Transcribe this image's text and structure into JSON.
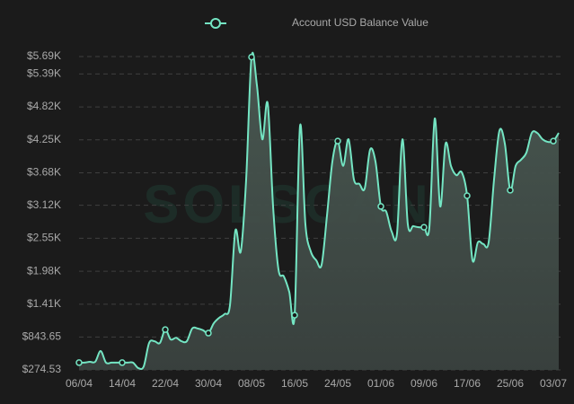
{
  "chart_data": {
    "type": "area",
    "legend": "Account USD Balance Value",
    "watermark": "SOLSCAN",
    "color": "#74e5c3",
    "fill": "#3b4742",
    "grid": true,
    "categories": [
      "06/04",
      null,
      null,
      null,
      null,
      null,
      null,
      null,
      "14/04",
      null,
      null,
      null,
      null,
      null,
      null,
      null,
      "22/04",
      null,
      null,
      null,
      null,
      null,
      null,
      null,
      "30/04",
      null,
      null,
      null,
      null,
      null,
      null,
      null,
      "08/05",
      null,
      null,
      null,
      null,
      null,
      null,
      null,
      "16/05",
      null,
      null,
      null,
      null,
      null,
      null,
      null,
      "24/05",
      null,
      null,
      null,
      null,
      null,
      null,
      null,
      "01/06",
      null,
      null,
      null,
      null,
      null,
      null,
      null,
      "09/06",
      null,
      null,
      null,
      null,
      null,
      null,
      null,
      "17/06",
      null,
      null,
      null,
      null,
      null,
      null,
      null,
      "25/06",
      null,
      null,
      null,
      null,
      null,
      null,
      null,
      "03/07",
      null
    ],
    "values": [
      400,
      400,
      415,
      415,
      600,
      400,
      400,
      400,
      400,
      400,
      400,
      305,
      335,
      740,
      770,
      740,
      970,
      800,
      830,
      770,
      770,
      990,
      990,
      960,
      910,
      1080,
      1175,
      1240,
      1390,
      2680,
      2320,
      3560,
      5680,
      5195,
      4260,
      4880,
      3100,
      2010,
      1890,
      1625,
      1220,
      4490,
      2790,
      2320,
      2170,
      2090,
      2940,
      3875,
      4230,
      3800,
      4260,
      3565,
      3490,
      3410,
      4080,
      3875,
      3100,
      3010,
      2665,
      2635,
      4260,
      2790,
      2760,
      2740,
      2740,
      2740,
      4620,
      3100,
      4185,
      3800,
      3640,
      3690,
      3285,
      2170,
      2480,
      2450,
      2480,
      3565,
      4410,
      4185,
      3380,
      3800,
      3905,
      4030,
      4370,
      4370,
      4260,
      4215,
      4230,
      4370
    ],
    "ylim": [
      274.53,
      5690
    ],
    "yticks": [
      {
        "value": 274.53,
        "label": "$274.53"
      },
      {
        "value": 843.65,
        "label": "$843.65"
      },
      {
        "value": 1410,
        "label": "$1.41K"
      },
      {
        "value": 1980,
        "label": "$1.98K"
      },
      {
        "value": 2550,
        "label": "$2.55K"
      },
      {
        "value": 3120,
        "label": "$3.12K"
      },
      {
        "value": 3680,
        "label": "$3.68K"
      },
      {
        "value": 4250,
        "label": "$4.25K"
      },
      {
        "value": 4820,
        "label": "$4.82K"
      },
      {
        "value": 5390,
        "label": "$5.39K"
      },
      {
        "value": 5690,
        "label": "$5.69K"
      }
    ]
  }
}
